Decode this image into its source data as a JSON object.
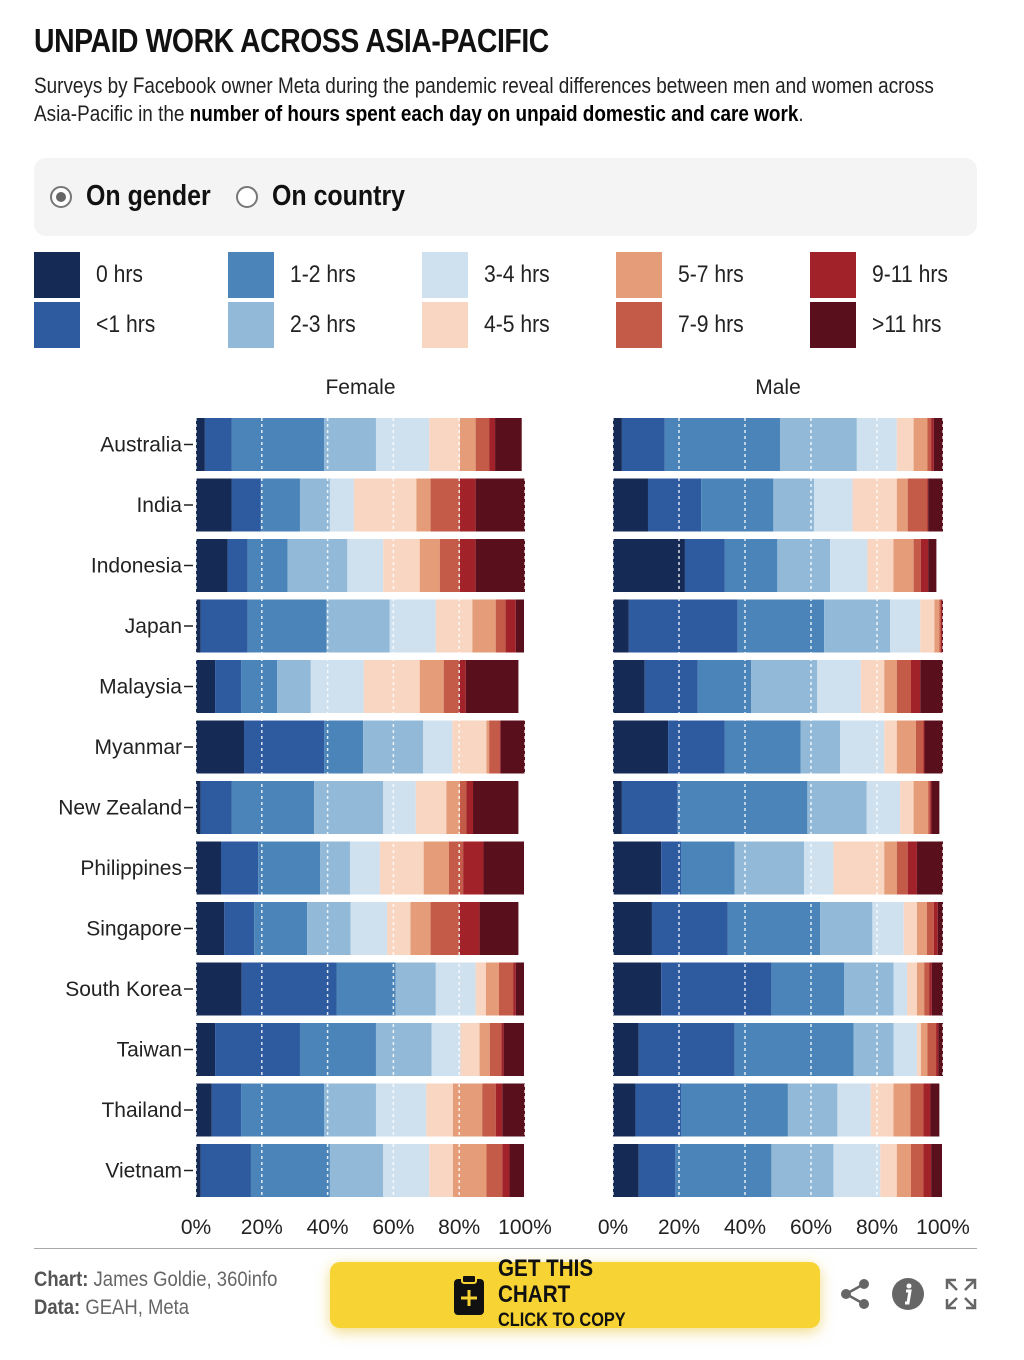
{
  "header": {
    "title": "UNPAID WORK ACROSS ASIA-PACIFIC",
    "subtitle_pre": "Surveys by Facebook owner Meta during the pandemic reveal differences between men and women across Asia-Pacific in the ",
    "subtitle_bold": "number of hours spent each day on unpaid domestic and care work",
    "subtitle_post": "."
  },
  "toggle": {
    "options": [
      {
        "label": "On gender",
        "selected": true
      },
      {
        "label": "On country",
        "selected": false
      }
    ]
  },
  "legend": [
    {
      "label": "0 hrs",
      "color": "#152a55"
    },
    {
      "label": "<1 hrs",
      "color": "#2e5aa0"
    },
    {
      "label": "1-2 hrs",
      "color": "#4b84b8"
    },
    {
      "label": "2-3 hrs",
      "color": "#92bad8"
    },
    {
      "label": "3-4 hrs",
      "color": "#cfe0ef"
    },
    {
      "label": "4-5 hrs",
      "color": "#f8d6c2"
    },
    {
      "label": "5-7 hrs",
      "color": "#e59c79"
    },
    {
      "label": "7-9 hrs",
      "color": "#c45a48"
    },
    {
      "label": "9-11 hrs",
      "color": "#a12228"
    },
    {
      "label": ">11 hrs",
      "color": "#5a101c"
    }
  ],
  "chart_data": {
    "type": "bar",
    "stacked": true,
    "orientation": "horizontal",
    "unit": "%",
    "xlim": [
      0,
      100
    ],
    "ticks": [
      "0%",
      "20%",
      "40%",
      "60%",
      "80%",
      "100%"
    ],
    "grid": "dotted vertical",
    "categories": [
      "Australia",
      "India",
      "Indonesia",
      "Japan",
      "Malaysia",
      "Myanmar",
      "New Zealand",
      "Philippines",
      "Singapore",
      "South Korea",
      "Taiwan",
      "Thailand",
      "Vietnam"
    ],
    "series_order": [
      "0 hrs",
      "<1 hrs",
      "1-2 hrs",
      "2-3 hrs",
      "3-4 hrs",
      "4-5 hrs",
      "5-7 hrs",
      "7-9 hrs",
      "9-11 hrs",
      ">11 hrs"
    ],
    "panels": [
      {
        "title": "Female",
        "values": [
          [
            2.7,
            8.1,
            28.1,
            15.8,
            16.2,
            9.3,
            4.8,
            4.1,
            1.8,
            8.1
          ],
          [
            10.8,
            8.8,
            12.0,
            9.1,
            7.3,
            19.0,
            4.3,
            8.9,
            4.8,
            15.0
          ],
          [
            9.6,
            6.1,
            12.1,
            18.2,
            10.9,
            11.1,
            6.1,
            6.1,
            4.8,
            15.0
          ],
          [
            1.4,
            14.3,
            24.0,
            19.2,
            14.0,
            11.1,
            7.1,
            3.0,
            3.1,
            2.5
          ],
          [
            5.8,
            7.9,
            11.0,
            10.2,
            16.1,
            17.0,
            7.3,
            4.7,
            2.0,
            16.0
          ],
          [
            14.6,
            24.4,
            11.8,
            18.2,
            8.9,
            10.4,
            0.8,
            3.2,
            0.3,
            7.4
          ],
          [
            1.4,
            9.4,
            25.1,
            21.0,
            9.9,
            9.3,
            4.1,
            2.0,
            2.0,
            13.8
          ],
          [
            7.6,
            11.3,
            18.8,
            9.1,
            9.1,
            13.3,
            7.7,
            4.3,
            6.2,
            12.3
          ],
          [
            8.6,
            9.1,
            16.1,
            13.2,
            11.1,
            7.1,
            6.1,
            8.7,
            6.2,
            11.8
          ],
          [
            13.9,
            28.8,
            18.0,
            12.2,
            12.1,
            3.1,
            4.0,
            4.3,
            0.8,
            2.5
          ],
          [
            5.8,
            25.8,
            23.1,
            16.9,
            8.8,
            5.8,
            3.1,
            3.5,
            0.7,
            6.2
          ],
          [
            4.8,
            8.9,
            25.3,
            15.7,
            15.3,
            8.1,
            8.9,
            4.1,
            2.0,
            6.9
          ],
          [
            1.4,
            15.3,
            24.0,
            16.2,
            14.0,
            7.2,
            10.2,
            4.8,
            2.2,
            4.4
          ]
        ]
      },
      {
        "title": "Male",
        "values": [
          [
            2.7,
            13.0,
            34.9,
            23.3,
            12.1,
            5.1,
            4.2,
            1.1,
            0.8,
            2.8
          ],
          [
            10.6,
            16.1,
            21.9,
            12.3,
            11.7,
            13.4,
            3.3,
            6.0,
            0.2,
            4.5
          ],
          [
            21.8,
            12.0,
            16.0,
            16.0,
            11.3,
            7.9,
            6.1,
            2.2,
            2.2,
            2.5
          ],
          [
            4.8,
            32.9,
            26.3,
            20.0,
            9.1,
            4.3,
            1.5,
            0.5,
            0.3,
            0.3
          ],
          [
            9.6,
            16.1,
            16.2,
            20.0,
            13.2,
            7.1,
            3.8,
            4.3,
            2.8,
            6.9
          ],
          [
            16.7,
            17.1,
            23.1,
            11.9,
            13.4,
            3.8,
            5.8,
            2.3,
            0.3,
            5.6
          ],
          [
            2.7,
            16.9,
            39.3,
            18.0,
            10.1,
            4.1,
            4.4,
            0.6,
            0.4,
            2.4
          ],
          [
            14.6,
            6.0,
            16.3,
            21.0,
            8.9,
            15.4,
            3.8,
            3.3,
            2.8,
            7.9
          ],
          [
            11.8,
            23.0,
            28.0,
            15.8,
            9.5,
            4.0,
            3.0,
            2.1,
            1.2,
            1.6
          ],
          [
            14.6,
            33.4,
            22.0,
            15.0,
            4.1,
            3.0,
            2.2,
            1.5,
            0.8,
            3.4
          ],
          [
            7.8,
            29.1,
            36.0,
            12.1,
            7.1,
            1.2,
            2.0,
            2.6,
            0.7,
            1.4
          ],
          [
            6.8,
            13.8,
            32.4,
            15.0,
            10.1,
            6.9,
            5.1,
            4.0,
            2.1,
            2.7
          ],
          [
            7.8,
            11.1,
            29.1,
            18.8,
            14.2,
            5.0,
            4.3,
            3.8,
            2.3,
            3.3
          ]
        ]
      }
    ]
  },
  "footer": {
    "chart_label": "Chart:",
    "chart_credit": " James Goldie, 360info",
    "data_label": "Data:",
    "data_credit": " GEAH, Meta",
    "button_line1": "GET THIS CHART",
    "button_line2": "CLICK TO COPY",
    "icons": [
      "share-icon",
      "info-icon",
      "expand-icon"
    ],
    "accent": "#f7d433"
  }
}
